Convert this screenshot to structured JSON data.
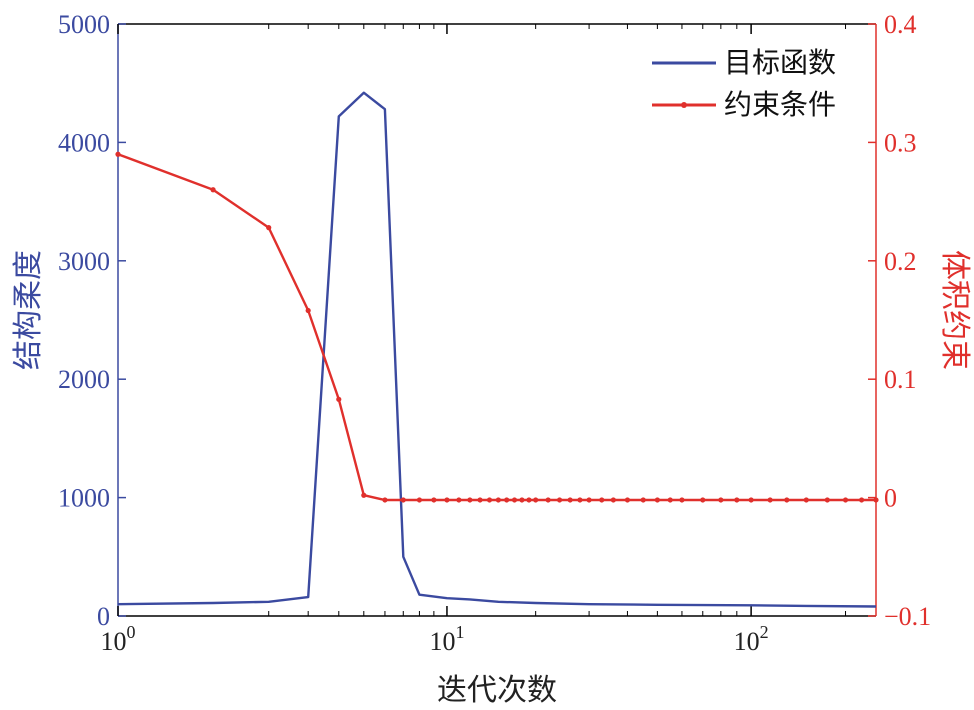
{
  "chart_data": {
    "type": "line",
    "xlabel": "迭代次数",
    "ylabel_left": "结构柔度",
    "ylabel_right": "体积约束",
    "x_scale": "symlog",
    "xlim": [
      0,
      250
    ],
    "ylim_left": [
      0,
      5000
    ],
    "ylim_right": [
      -0.1,
      0.4
    ],
    "x_ticks": [
      {
        "value": 0,
        "base": "10",
        "exp": "0"
      },
      {
        "value": 10,
        "base": "10",
        "exp": "1"
      },
      {
        "value": 100,
        "base": "10",
        "exp": "2"
      }
    ],
    "y_ticks_left": [
      "0",
      "1000",
      "2000",
      "3000",
      "4000",
      "5000"
    ],
    "y_ticks_left_values": [
      0,
      1000,
      2000,
      3000,
      4000,
      5000
    ],
    "y_ticks_right": [
      "−0.1",
      "0",
      "0.1",
      "0.2",
      "0.3",
      "0.4"
    ],
    "y_ticks_right_values": [
      -0.1,
      0,
      0.1,
      0.2,
      0.3,
      0.4
    ],
    "legend_position": "top-right",
    "series": [
      {
        "name": "目标函数",
        "axis": "left",
        "color": "#3b4aa0",
        "x": [
          0,
          1,
          2,
          3,
          4,
          5,
          6,
          7,
          8,
          10,
          12,
          15,
          20,
          30,
          50,
          100,
          150,
          250
        ],
        "y": [
          100,
          110,
          120,
          160,
          4220,
          4420,
          4280,
          500,
          180,
          150,
          140,
          120,
          110,
          100,
          95,
          90,
          85,
          80
        ]
      },
      {
        "name": "约束条件",
        "axis": "right",
        "color": "#e0302c",
        "x": [
          0,
          1,
          2,
          3,
          4,
          5,
          6,
          7,
          8,
          9,
          10,
          11,
          12,
          13,
          14,
          15,
          16,
          17,
          18,
          19,
          20,
          22,
          24,
          26,
          28,
          30,
          33,
          36,
          40,
          45,
          50,
          55,
          60,
          70,
          80,
          90,
          100,
          115,
          130,
          150,
          175,
          200,
          225,
          250
        ],
        "y": [
          0.29,
          0.26,
          0.228,
          0.158,
          0.083,
          0.002,
          -0.002,
          -0.002,
          -0.002,
          -0.002,
          -0.002,
          -0.002,
          -0.002,
          -0.002,
          -0.002,
          -0.002,
          -0.002,
          -0.002,
          -0.002,
          -0.002,
          -0.002,
          -0.002,
          -0.002,
          -0.002,
          -0.002,
          -0.002,
          -0.002,
          -0.002,
          -0.002,
          -0.002,
          -0.002,
          -0.002,
          -0.002,
          -0.002,
          -0.002,
          -0.002,
          -0.002,
          -0.002,
          -0.002,
          -0.002,
          -0.002,
          -0.002,
          -0.002,
          -0.002
        ]
      }
    ]
  }
}
